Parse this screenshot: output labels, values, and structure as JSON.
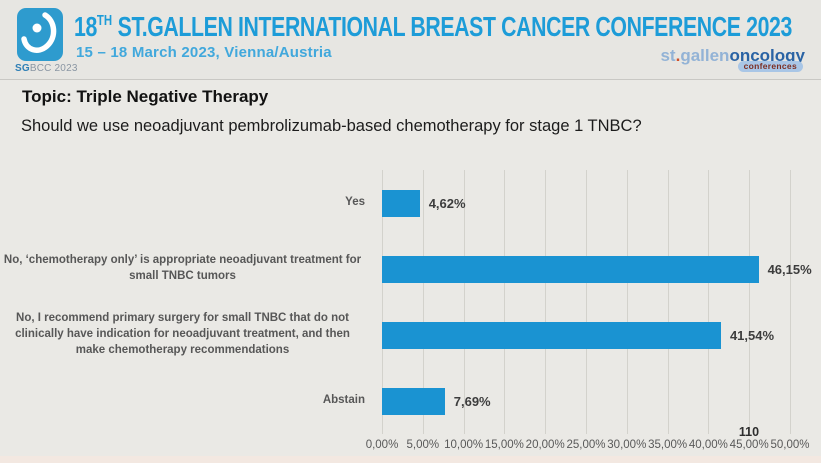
{
  "header": {
    "logo_caption_bold": "SG",
    "logo_caption_rest": "BCC 2023",
    "title_num": "18",
    "title_sup": "TH",
    "title_rest": " ST.GALLEN INTERNATIONAL BREAST CANCER CONFERENCE 2023",
    "subtitle": "15 – 18 March 2023, Vienna/Austria",
    "brand_st": "st",
    "brand_dot": ".",
    "brand_gallen": "gallen",
    "brand_oncology": "oncology",
    "brand_badge": "conferences"
  },
  "topic": {
    "label": "Topic: Triple Negative Therapy",
    "question": "Should we use neoadjuvant pembrolizumab-based chemotherapy for stage 1 TNBC?"
  },
  "chart_data": {
    "type": "bar",
    "orientation": "horizontal",
    "categories": [
      "Yes",
      "No, ‘chemotherapy only’ is appropriate neoadjuvant treatment for small TNBC tumors",
      "No, I recommend primary surgery for small TNBC that do not clinically have indication for neoadjuvant treatment, and then make chemotherapy recommendations",
      "Abstain"
    ],
    "values": [
      4.62,
      46.15,
      41.54,
      7.69
    ],
    "value_labels": [
      "4,62%",
      "46,15%",
      "41,54%",
      "7,69%"
    ],
    "x_ticks": [
      "0,00%",
      "5,00%",
      "10,00%",
      "15,00%",
      "20,00%",
      "25,00%",
      "30,00%",
      "35,00%",
      "40,00%",
      "45,00%",
      "50,00%"
    ],
    "xlim": [
      0,
      50
    ],
    "grid": true,
    "legend": "none",
    "bar_color": "#1a93d2",
    "total_responses": "110"
  },
  "colors": {
    "accent_blue": "#1d9cd8",
    "subtitle_blue": "#41a8dc",
    "bar_blue": "#1a93d2",
    "slide_background": "#eae9e5",
    "gridline": "#d3d2cc"
  }
}
